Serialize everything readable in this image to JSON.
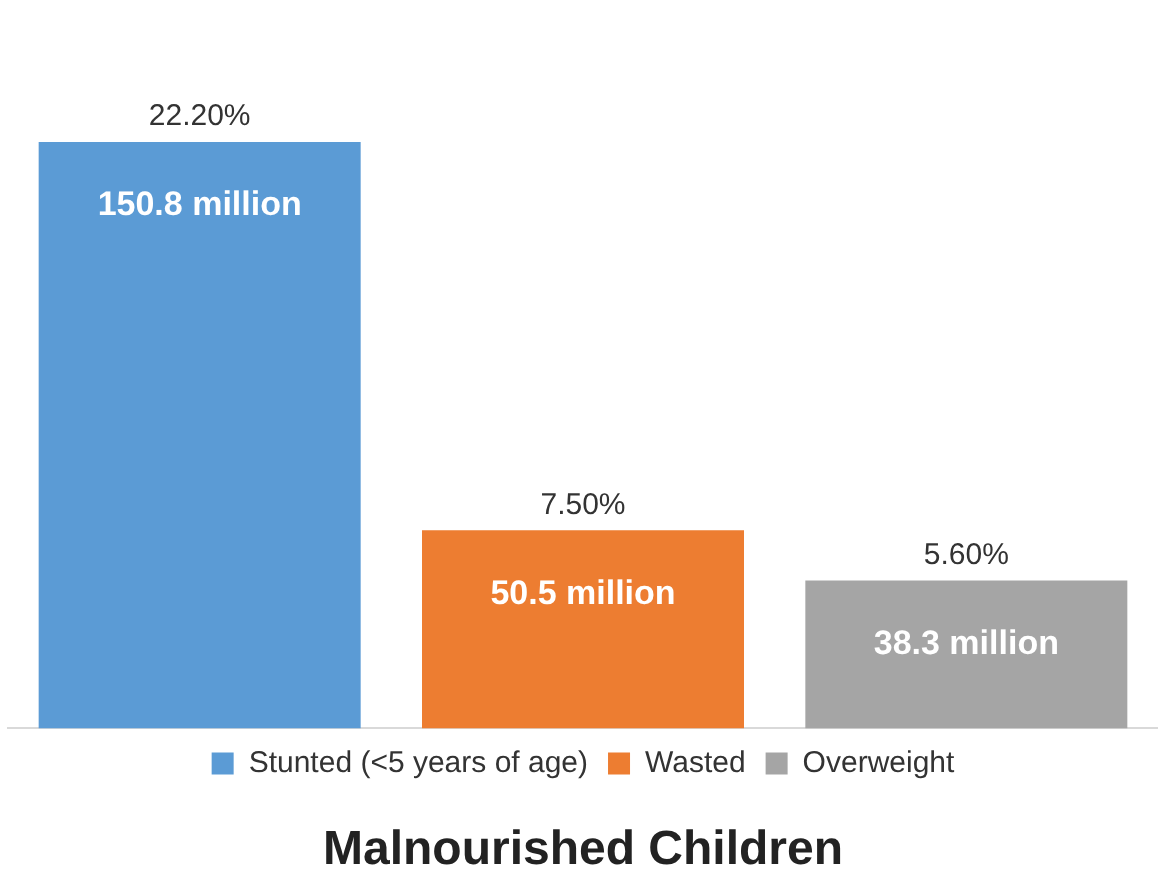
{
  "chart_data": {
    "type": "bar",
    "title": "Malnourished Children",
    "categories": [
      null,
      null,
      null
    ],
    "stacked": true,
    "series": [
      {
        "name": "Stunted (<5 years of age)",
        "color": "#5b9bd5",
        "values": [
          22.2,
          null,
          null
        ],
        "value_labels": [
          "22.20%",
          null,
          null
        ]
      },
      {
        "name": "Wasted",
        "color": "#ed7d31",
        "values": [
          null,
          7.5,
          null
        ],
        "value_labels": [
          null,
          "7.50%",
          null
        ]
      },
      {
        "name": "Overweight",
        "color": "#a5a5a5",
        "values": [
          null,
          null,
          5.6
        ],
        "value_labels": [
          null,
          null,
          "5.60%"
        ]
      }
    ],
    "annotations": [
      "150.8 million",
      "50.5 million",
      "38.3 million"
    ],
    "legend": "bottom",
    "grid": false
  }
}
